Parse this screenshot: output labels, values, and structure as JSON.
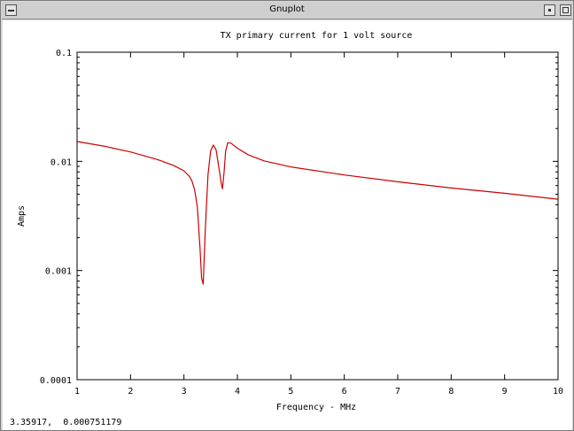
{
  "window": {
    "title": "Gnuplot"
  },
  "status": {
    "coordinates": "3.35917,  0.000751179"
  },
  "colors": {
    "curve": "#cc0000",
    "axes": "#000000",
    "background": "#ffffff"
  },
  "chart_data": {
    "type": "line",
    "title": "TX primary current for 1 volt source",
    "xlabel": "Frequency - MHz",
    "ylabel": "Amps",
    "xscale": "linear",
    "yscale": "log",
    "xlim": [
      1,
      10
    ],
    "ylim": [
      0.0001,
      0.1
    ],
    "grid": false,
    "xticks": [
      1,
      2,
      3,
      4,
      5,
      6,
      7,
      8,
      9,
      10
    ],
    "xtick_labels": [
      "1",
      "2",
      "3",
      "4",
      "5",
      "6",
      "7",
      "8",
      "9",
      "10"
    ],
    "yticks": [
      0.0001,
      0.001,
      0.01,
      0.1
    ],
    "ytick_labels": [
      "0.0001",
      "0.001",
      "0.01",
      "0.1"
    ],
    "series": [
      {
        "x": [
          1.0,
          1.5,
          2.0,
          2.5,
          2.8,
          3.0,
          3.1,
          3.15,
          3.2,
          3.25,
          3.3,
          3.33,
          3.36,
          3.4,
          3.45,
          3.5,
          3.55,
          3.6,
          3.65,
          3.7,
          3.72,
          3.75,
          3.78,
          3.82,
          3.88,
          4.0,
          4.2,
          4.5,
          5.0,
          6.0,
          7.0,
          8.0,
          9.0,
          10.0
        ],
        "y": [
          0.0152,
          0.0138,
          0.0122,
          0.0104,
          0.0092,
          0.0082,
          0.0073,
          0.0066,
          0.0055,
          0.0038,
          0.0016,
          0.00085,
          0.00075,
          0.0024,
          0.0075,
          0.0125,
          0.0141,
          0.0128,
          0.009,
          0.0062,
          0.0056,
          0.0078,
          0.0124,
          0.0148,
          0.0147,
          0.0132,
          0.0115,
          0.0101,
          0.0089,
          0.0075,
          0.0065,
          0.0057,
          0.0051,
          0.0045
        ]
      }
    ]
  }
}
